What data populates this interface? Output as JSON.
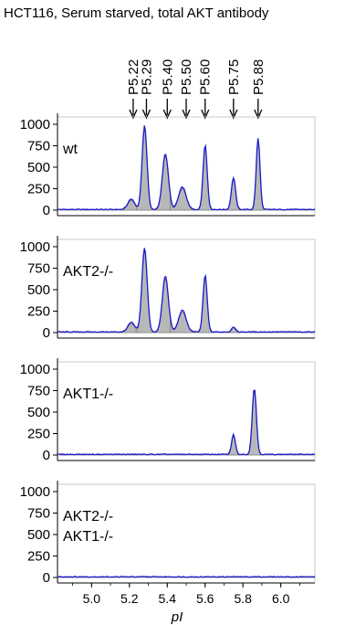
{
  "title": "HCT116, Serum starved, total AKT antibody",
  "colors": {
    "trace": "#1a1acc",
    "fill": "#b8b8b8",
    "baseline": "#888888",
    "axis": "#000000",
    "frame": "#bbbbbb"
  },
  "peak_markers": [
    {
      "label": "P5.22",
      "x": 5.22
    },
    {
      "label": "P5.29",
      "x": 5.29
    },
    {
      "label": "P5.40",
      "x": 5.4
    },
    {
      "label": "P5.50",
      "x": 5.5
    },
    {
      "label": "P5.60",
      "x": 5.6
    },
    {
      "label": "P5.75",
      "x": 5.75
    },
    {
      "label": "P5.88",
      "x": 5.88
    }
  ],
  "chart_data": [
    {
      "type": "area",
      "panel_label": [
        "wt"
      ],
      "xlim": [
        4.82,
        6.18
      ],
      "ylim": [
        0,
        1080
      ],
      "yticks": [
        0,
        250,
        500,
        750,
        1000
      ],
      "xticks": [],
      "xlabel": "",
      "peaks": [
        {
          "x": 5.21,
          "y": 120,
          "width": 0.018
        },
        {
          "x": 5.28,
          "y": 980,
          "width": 0.013
        },
        {
          "x": 5.39,
          "y": 650,
          "width": 0.016
        },
        {
          "x": 5.48,
          "y": 260,
          "width": 0.02
        },
        {
          "x": 5.6,
          "y": 750,
          "width": 0.011
        },
        {
          "x": 5.75,
          "y": 370,
          "width": 0.011
        },
        {
          "x": 5.88,
          "y": 830,
          "width": 0.01
        }
      ]
    },
    {
      "type": "area",
      "panel_label": [
        "AKT2-/-"
      ],
      "xlim": [
        4.82,
        6.18
      ],
      "ylim": [
        0,
        1080
      ],
      "yticks": [
        0,
        250,
        500,
        750,
        1000
      ],
      "xticks": [],
      "xlabel": "",
      "peaks": [
        {
          "x": 5.21,
          "y": 110,
          "width": 0.018
        },
        {
          "x": 5.28,
          "y": 980,
          "width": 0.014
        },
        {
          "x": 5.39,
          "y": 650,
          "width": 0.016
        },
        {
          "x": 5.48,
          "y": 250,
          "width": 0.02
        },
        {
          "x": 5.6,
          "y": 660,
          "width": 0.011
        },
        {
          "x": 5.75,
          "y": 60,
          "width": 0.01
        }
      ]
    },
    {
      "type": "area",
      "panel_label": [
        "AKT1-/-"
      ],
      "xlim": [
        4.82,
        6.18
      ],
      "ylim": [
        0,
        1080
      ],
      "yticks": [
        0,
        250,
        500,
        750,
        1000
      ],
      "xticks": [],
      "xlabel": "",
      "peaks": [
        {
          "x": 5.75,
          "y": 230,
          "width": 0.01
        },
        {
          "x": 5.86,
          "y": 770,
          "width": 0.011
        }
      ]
    },
    {
      "type": "area",
      "panel_label": [
        "AKT2-/-",
        "AKT1-/-"
      ],
      "xlim": [
        4.82,
        6.18
      ],
      "ylim": [
        0,
        1080
      ],
      "yticks": [
        0,
        250,
        500,
        750,
        1000
      ],
      "xticks": [
        5.0,
        5.2,
        5.4,
        5.6,
        5.8,
        6.0
      ],
      "xtick_labels": [
        "5.0",
        "5.2",
        "5.4",
        "5.6",
        "5.8",
        "6.0"
      ],
      "xlabel": "pI",
      "peaks": []
    }
  ]
}
